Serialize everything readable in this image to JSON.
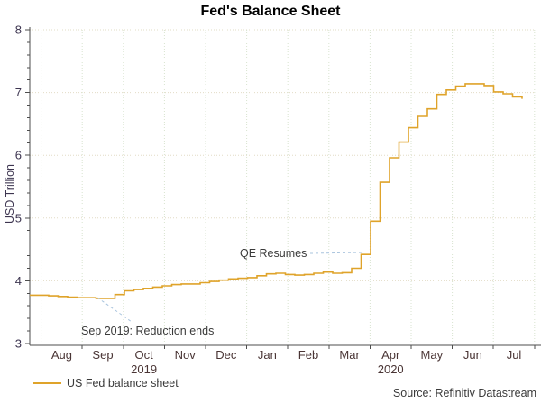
{
  "title": "Fed's Balance Sheet",
  "source_note": "Source: Refinitiv Datastream",
  "colors": {
    "series_line": "#DFA32A",
    "leader_line": "#A9C4DE",
    "grid_horizontal": "#e2dcc6",
    "grid_vertical": "#d8e3d0",
    "axis": "#4d4d4d"
  },
  "chart_data": {
    "type": "line",
    "title": "Fed's Balance Sheet",
    "ylabel": "USD Trillion",
    "xlabel": "",
    "ylim": [
      3,
      8
    ],
    "y_major_ticks": [
      3,
      4,
      5,
      6,
      7,
      8
    ],
    "y_minor_step": 0.2,
    "grid": "dotted",
    "legend_position": "bottom-left",
    "x_month_labels": [
      "Aug",
      "Sep",
      "Oct",
      "Nov",
      "Dec",
      "Jan",
      "Feb",
      "Mar",
      "Apr",
      "May",
      "Jun",
      "Jul"
    ],
    "x_year_labels": [
      {
        "label": "2019",
        "month_index": 2
      },
      {
        "label": "2020",
        "month_index": 8
      }
    ],
    "series": [
      {
        "name": "US Fed balance sheet",
        "color": "#DFA32A",
        "sampling": "weekly",
        "values": [
          3.77,
          3.77,
          3.76,
          3.75,
          3.74,
          3.73,
          3.73,
          3.72,
          3.72,
          3.78,
          3.84,
          3.86,
          3.88,
          3.9,
          3.92,
          3.94,
          3.95,
          3.95,
          3.97,
          3.99,
          4.01,
          4.03,
          4.04,
          4.05,
          4.08,
          4.11,
          4.12,
          4.1,
          4.09,
          4.1,
          4.12,
          4.14,
          4.12,
          4.13,
          4.2,
          4.42,
          4.95,
          5.57,
          5.96,
          6.21,
          6.44,
          6.62,
          6.74,
          6.97,
          7.04,
          7.1,
          7.14,
          7.14,
          7.11,
          7.01,
          6.98,
          6.93,
          6.9
        ]
      }
    ],
    "annotations": [
      {
        "text": "Sep 2019: Reduction ends",
        "points_to": "mid-Sep 2019 low ~3.72"
      },
      {
        "text": "QE Resumes",
        "points_to": "mid-Mar 2020 jump ~4.4"
      }
    ]
  }
}
